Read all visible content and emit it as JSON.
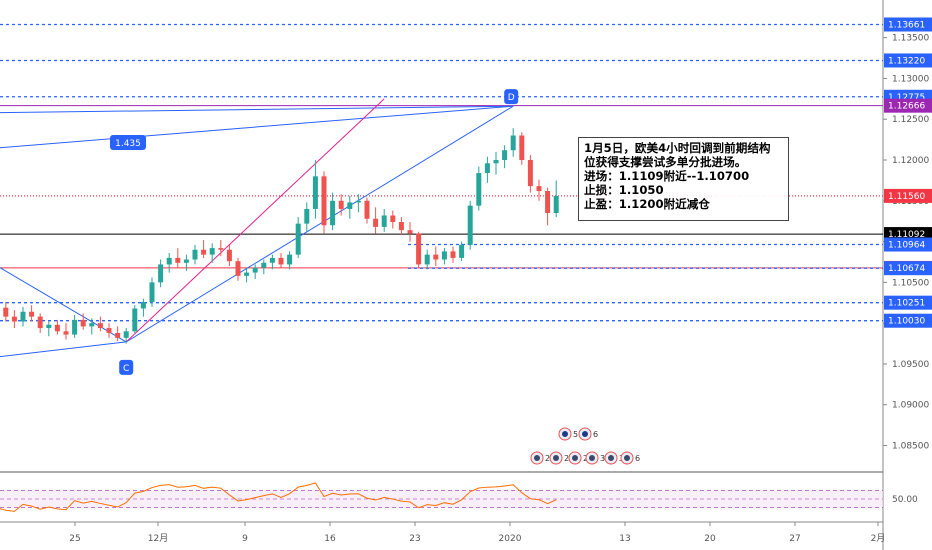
{
  "chart_data": {
    "type": "candlestick",
    "y_range": [
      1.082,
      1.139
    ],
    "y_ticks": [
      "1.13500",
      "1.13000",
      "1.12500",
      "1.12000",
      "1.11500",
      "1.11000",
      "1.10500",
      "1.10000",
      "1.09500",
      "1.09000",
      "1.08500"
    ],
    "x_ticks": [
      "25",
      "12月",
      "9",
      "16",
      "23",
      "2020",
      "6",
      "13",
      "20",
      "27",
      "2月"
    ],
    "price_levels": [
      {
        "label": "1.13661",
        "value": 1.13661,
        "color": "#2962ff",
        "style": "dashed"
      },
      {
        "label": "1.13220",
        "value": 1.1322,
        "color": "#2962ff",
        "style": "dashed"
      },
      {
        "label": "1.12775",
        "value": 1.12775,
        "color": "#2962ff",
        "style": "dashed"
      },
      {
        "label": "1.12666",
        "value": 1.12666,
        "color": "#9c27b0",
        "style": "solid"
      },
      {
        "label": "1.11560",
        "value": 1.1156,
        "color": "#f23645",
        "style": "dotted"
      },
      {
        "label": "1.11092",
        "value": 1.11092,
        "color": "#000000",
        "style": "solid"
      },
      {
        "label": "1.10964",
        "value": 1.10964,
        "color": "#2962ff",
        "style": "dashed"
      },
      {
        "label": "1.10677",
        "value": 1.10677,
        "color": "#f23645",
        "style": "solid"
      },
      {
        "label": "1.10674",
        "value": 1.10674,
        "color": "#2962ff",
        "style": "dashed"
      },
      {
        "label": "1.10251",
        "value": 1.10251,
        "color": "#2962ff",
        "style": "dashed"
      },
      {
        "label": "1.10030",
        "value": 1.1003,
        "color": "#2962ff",
        "style": "dashed"
      }
    ],
    "markers": [
      {
        "label": "C",
        "x_day": -3,
        "price": 1.0977
      },
      {
        "label": "D",
        "x_day": 42,
        "price": 1.1277
      },
      {
        "label": "1.435",
        "x_day": -20,
        "price": 1.1233
      }
    ],
    "candles": [
      [
        -32,
        1.1077,
        1.1088,
        1.107,
        1.1082
      ],
      [
        -31,
        1.1082,
        1.109,
        1.1072,
        1.1076
      ],
      [
        -30,
        1.1076,
        1.1082,
        1.1066,
        1.1072
      ],
      [
        -29,
        1.1072,
        1.108,
        1.1064,
        1.1075
      ],
      [
        -28,
        1.1075,
        1.1085,
        1.1068,
        1.108
      ],
      [
        -27,
        1.108,
        1.1088,
        1.1071,
        1.1074
      ],
      [
        -26,
        1.1074,
        1.1079,
        1.1056,
        1.106
      ],
      [
        -25,
        1.106,
        1.1066,
        1.1034,
        1.104
      ],
      [
        -24,
        1.104,
        1.1048,
        1.1022,
        1.1028
      ],
      [
        -23,
        1.1028,
        1.1036,
        1.1016,
        1.103
      ],
      [
        -22,
        1.103,
        1.1034,
        1.1012,
        1.1019
      ],
      [
        -21,
        1.1019,
        1.1028,
        1.101,
        1.1024
      ],
      [
        -20,
        1.1024,
        1.1032,
        1.1014,
        1.1018
      ],
      [
        -19,
        1.1018,
        1.1026,
        1.1006,
        1.1013
      ],
      [
        -18,
        1.1013,
        1.1024,
        1.1004,
        1.1019
      ],
      [
        -17,
        1.1019,
        1.1026,
        1.1002,
        1.1008
      ],
      [
        -16,
        1.1008,
        1.1016,
        1.0994,
        1.1002
      ],
      [
        -15,
        1.1002,
        1.102,
        1.0996,
        1.1014
      ],
      [
        -14,
        1.1014,
        1.1022,
        1.1002,
        1.1008
      ],
      [
        -13,
        1.1008,
        1.1012,
        1.0988,
        1.0994
      ],
      [
        -12,
        1.0994,
        1.1002,
        1.0984,
        1.0998
      ],
      [
        -11,
        1.0998,
        1.1004,
        1.0986,
        1.099
      ],
      [
        -10,
        1.099,
        1.1,
        1.098,
        1.0986
      ],
      [
        -9,
        1.0986,
        1.101,
        1.0982,
        1.1004
      ],
      [
        -8,
        1.1004,
        1.1012,
        1.0992,
        1.0996
      ],
      [
        -7,
        1.0996,
        1.1006,
        1.0986,
        1.1
      ],
      [
        -6,
        1.1,
        1.1008,
        1.099,
        1.0994
      ],
      [
        -5,
        1.0994,
        1.1,
        1.0982,
        1.0988
      ],
      [
        -4,
        1.0988,
        1.0996,
        1.0978,
        1.0982
      ],
      [
        -3,
        1.0982,
        1.0994,
        1.0975,
        1.099
      ],
      [
        -2,
        1.099,
        1.1022,
        1.0988,
        1.1018
      ],
      [
        -1,
        1.1018,
        1.103,
        1.1008,
        1.1026
      ],
      [
        0,
        1.1026,
        1.1056,
        1.102,
        1.105
      ],
      [
        1,
        1.105,
        1.1078,
        1.1044,
        1.1072
      ],
      [
        2,
        1.1072,
        1.1086,
        1.1062,
        1.108
      ],
      [
        3,
        1.108,
        1.1092,
        1.1068,
        1.1074
      ],
      [
        4,
        1.1074,
        1.1084,
        1.1064,
        1.1078
      ],
      [
        5,
        1.1078,
        1.1096,
        1.1072,
        1.109
      ],
      [
        6,
        1.109,
        1.1102,
        1.108,
        1.1084
      ],
      [
        7,
        1.1084,
        1.1098,
        1.1074,
        1.1092
      ],
      [
        8,
        1.1092,
        1.1102,
        1.1082,
        1.109
      ],
      [
        9,
        1.109,
        1.1096,
        1.107,
        1.1076
      ],
      [
        10,
        1.1076,
        1.108,
        1.1052,
        1.1058
      ],
      [
        11,
        1.1058,
        1.1068,
        1.105,
        1.1062
      ],
      [
        12,
        1.1062,
        1.1072,
        1.1054,
        1.1068
      ],
      [
        13,
        1.1068,
        1.1078,
        1.106,
        1.1074
      ],
      [
        14,
        1.1074,
        1.1084,
        1.1066,
        1.108
      ],
      [
        15,
        1.108,
        1.1086,
        1.1068,
        1.1072
      ],
      [
        16,
        1.1072,
        1.1088,
        1.1066,
        1.1084
      ],
      [
        17,
        1.1084,
        1.113,
        1.108,
        1.1122
      ],
      [
        18,
        1.1122,
        1.1148,
        1.1112,
        1.114
      ],
      [
        19,
        1.114,
        1.12,
        1.1128,
        1.118
      ],
      [
        20,
        1.118,
        1.1186,
        1.111,
        1.112
      ],
      [
        21,
        1.112,
        1.116,
        1.1114,
        1.115
      ],
      [
        22,
        1.115,
        1.1158,
        1.1132,
        1.114
      ],
      [
        23,
        1.114,
        1.1156,
        1.1128,
        1.1148
      ],
      [
        24,
        1.1148,
        1.1158,
        1.1136,
        1.115
      ],
      [
        25,
        1.115,
        1.1154,
        1.1122,
        1.1128
      ],
      [
        26,
        1.1128,
        1.1142,
        1.111,
        1.1118
      ],
      [
        27,
        1.1118,
        1.114,
        1.1112,
        1.1132
      ],
      [
        28,
        1.1132,
        1.1138,
        1.1116,
        1.1124
      ],
      [
        29,
        1.1124,
        1.113,
        1.1108,
        1.1114
      ],
      [
        30,
        1.1114,
        1.1124,
        1.11,
        1.111
      ],
      [
        31,
        1.111,
        1.1112,
        1.1068,
        1.1072
      ],
      [
        32,
        1.1072,
        1.109,
        1.1066,
        1.1084
      ],
      [
        33,
        1.1084,
        1.1094,
        1.107,
        1.1078
      ],
      [
        34,
        1.1078,
        1.1092,
        1.1072,
        1.1088
      ],
      [
        35,
        1.1088,
        1.1094,
        1.1074,
        1.108
      ],
      [
        36,
        1.108,
        1.11,
        1.1076,
        1.1096
      ],
      [
        37,
        1.1096,
        1.115,
        1.109,
        1.1144
      ],
      [
        38,
        1.1144,
        1.1192,
        1.1138,
        1.1184
      ],
      [
        39,
        1.1184,
        1.1204,
        1.1172,
        1.1196
      ],
      [
        40,
        1.1196,
        1.121,
        1.1182,
        1.12
      ],
      [
        41,
        1.12,
        1.1218,
        1.119,
        1.1212
      ],
      [
        42,
        1.1212,
        1.1239,
        1.1204,
        1.123
      ],
      [
        43,
        1.123,
        1.1234,
        1.1194,
        1.12
      ],
      [
        44,
        1.12,
        1.1206,
        1.116,
        1.1168
      ],
      [
        45,
        1.1168,
        1.1176,
        1.115,
        1.1162
      ],
      [
        46,
        1.1162,
        1.1166,
        1.112,
        1.1135
      ],
      [
        47,
        1.1135,
        1.1175,
        1.113,
        1.1156
      ]
    ],
    "rsi": {
      "range": [
        0,
        100
      ],
      "tick": "50.00",
      "upper": 70,
      "lower": 30
    }
  },
  "note": {
    "lines": [
      "1月5日，欧美4小时回调到前期结构",
      "位获得支撑尝试多单分批进场。",
      "进场：1.1109附近--1.10700",
      "止损：1.1050",
      "止盈：1.1200附近减仓"
    ]
  },
  "events": {
    "row1": [
      "5",
      "6"
    ],
    "row2": [
      "2",
      "2",
      "2",
      "3",
      "3",
      "6"
    ]
  },
  "colors": {
    "up": "#26a69a",
    "down": "#ef5350",
    "blue": "#2962ff",
    "purple": "#9c27b0",
    "red": "#f23645"
  }
}
